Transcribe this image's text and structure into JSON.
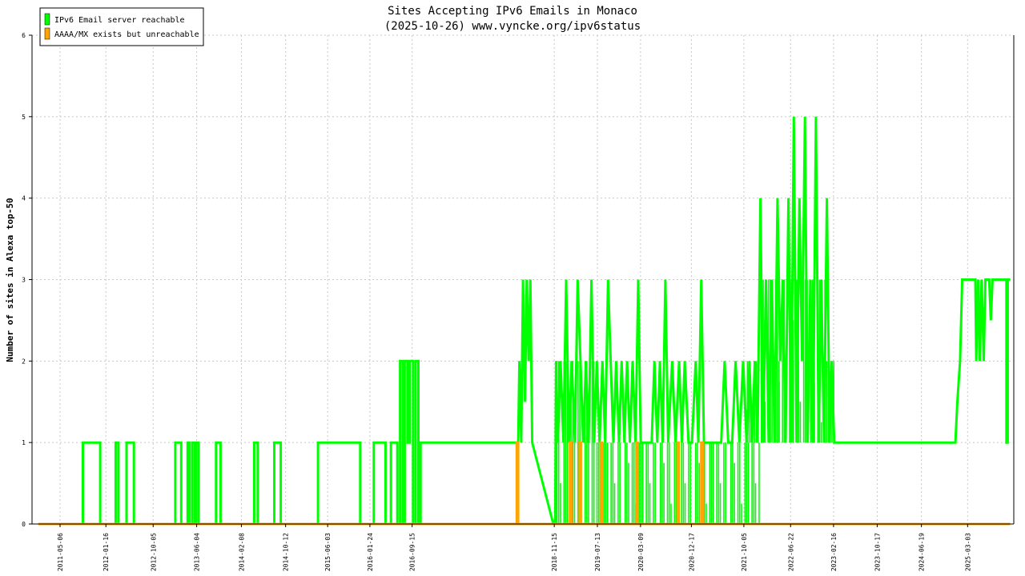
{
  "chart_data": {
    "type": "line",
    "title": "Sites Accepting IPv6 Emails in Monaco",
    "subtitle": "(2025-10-26) www.vyncke.org/ipv6status",
    "xlabel": "",
    "ylabel": "Number of sites in Alexa top-50",
    "ylim": [
      0,
      6
    ],
    "y_ticks": [
      0,
      1,
      2,
      3,
      4,
      5,
      6
    ],
    "x_ticks": [
      "2011-05-06",
      "2012-01-16",
      "2012-10-05",
      "2013-06-04",
      "2014-02-08",
      "2014-10-12",
      "2015-06-03",
      "2016-01-24",
      "2016-09-15",
      "2018-11-15",
      "2019-07-13",
      "2020-03-09",
      "2020-12-17",
      "2021-10-05",
      "2022-06-22",
      "2023-02-16",
      "2023-10-17",
      "2024-06-19",
      "2025-03-03"
    ],
    "xlim": [
      "2010-12-01",
      "2025-11-15"
    ],
    "grid": true,
    "legend_position": "top-left",
    "colors": {
      "reachable": "#00ff00",
      "unreachable": "#ffa500",
      "grid": "#c8c8c8"
    },
    "series": [
      {
        "name": "IPv6 Email server reachable",
        "color": "#00ff00",
        "points": [
          [
            "2011-01-05",
            0
          ],
          [
            "2011-09-10",
            0
          ],
          [
            "2011-09-10",
            1
          ],
          [
            "2011-12-15",
            1
          ],
          [
            "2011-12-15",
            0
          ],
          [
            "2012-03-10",
            0
          ],
          [
            "2012-03-10",
            1
          ],
          [
            "2012-03-25",
            1
          ],
          [
            "2012-03-25",
            0
          ],
          [
            "2012-05-10",
            0
          ],
          [
            "2012-05-10",
            1
          ],
          [
            "2012-06-20",
            1
          ],
          [
            "2012-06-20",
            0
          ],
          [
            "2013-02-05",
            0
          ],
          [
            "2013-02-05",
            1
          ],
          [
            "2013-03-10",
            1
          ],
          [
            "2013-03-10",
            0
          ],
          [
            "2013-04-15",
            0
          ],
          [
            "2013-04-15",
            1
          ],
          [
            "2013-04-25",
            1
          ],
          [
            "2013-04-25",
            0
          ],
          [
            "2013-05-10",
            0
          ],
          [
            "2013-05-10",
            1
          ],
          [
            "2013-05-25",
            1
          ],
          [
            "2013-05-25",
            0
          ],
          [
            "2013-06-01",
            0
          ],
          [
            "2013-06-01",
            1
          ],
          [
            "2013-06-15",
            1
          ],
          [
            "2013-06-15",
            0
          ],
          [
            "2013-09-20",
            0
          ],
          [
            "2013-09-20",
            1
          ],
          [
            "2013-10-15",
            1
          ],
          [
            "2013-10-15",
            0
          ],
          [
            "2014-04-20",
            0
          ],
          [
            "2014-04-20",
            1
          ],
          [
            "2014-05-10",
            1
          ],
          [
            "2014-05-10",
            0
          ],
          [
            "2014-08-10",
            0
          ],
          [
            "2014-08-10",
            1
          ],
          [
            "2014-09-15",
            1
          ],
          [
            "2014-09-15",
            0
          ],
          [
            "2015-04-10",
            0
          ],
          [
            "2015-04-10",
            1
          ],
          [
            "2015-12-01",
            1
          ],
          [
            "2015-12-01",
            0
          ],
          [
            "2016-02-15",
            0
          ],
          [
            "2016-02-15",
            1
          ],
          [
            "2016-04-20",
            1
          ],
          [
            "2016-04-20",
            0
          ],
          [
            "2016-05-20",
            0
          ],
          [
            "2016-05-20",
            1
          ],
          [
            "2016-06-25",
            1
          ],
          [
            "2016-06-25",
            0
          ],
          [
            "2016-07-10",
            0
          ],
          [
            "2016-07-10",
            2
          ],
          [
            "2016-07-25",
            2
          ],
          [
            "2016-07-25",
            0
          ],
          [
            "2016-08-05",
            0
          ],
          [
            "2016-08-05",
            2
          ],
          [
            "2016-08-20",
            2
          ],
          [
            "2016-08-20",
            1
          ],
          [
            "2016-09-01",
            1
          ],
          [
            "2016-09-01",
            2
          ],
          [
            "2016-09-20",
            2
          ],
          [
            "2016-09-20",
            0
          ],
          [
            "2016-10-05",
            0
          ],
          [
            "2016-10-05",
            2
          ],
          [
            "2016-10-20",
            2
          ],
          [
            "2016-10-20",
            0
          ],
          [
            "2016-11-01",
            0
          ],
          [
            "2016-11-01",
            1
          ],
          [
            "2018-04-20",
            1
          ],
          [
            "2018-04-25",
            0.5
          ],
          [
            "2018-05-05",
            2
          ],
          [
            "2018-05-15",
            1
          ],
          [
            "2018-05-25",
            3
          ],
          [
            "2018-06-05",
            1.5
          ],
          [
            "2018-06-15",
            3
          ],
          [
            "2018-06-25",
            2
          ],
          [
            "2018-07-05",
            3
          ],
          [
            "2018-07-15",
            1
          ],
          [
            "2018-11-10",
            0
          ],
          [
            "2018-11-20",
            0
          ],
          [
            "2018-11-25",
            2
          ],
          [
            "2018-12-05",
            1
          ],
          [
            "2018-12-20",
            2
          ],
          [
            "2019-01-05",
            1
          ],
          [
            "2019-01-20",
            3
          ],
          [
            "2019-02-05",
            1
          ],
          [
            "2019-02-20",
            2
          ],
          [
            "2019-03-10",
            1
          ],
          [
            "2019-03-25",
            3
          ],
          [
            "2019-04-10",
            2
          ],
          [
            "2019-04-25",
            1
          ],
          [
            "2019-05-10",
            2
          ],
          [
            "2019-05-25",
            1
          ],
          [
            "2019-06-10",
            3
          ],
          [
            "2019-06-25",
            1
          ],
          [
            "2019-07-10",
            2
          ],
          [
            "2019-07-25",
            1
          ],
          [
            "2019-08-10",
            2
          ],
          [
            "2019-08-25",
            1
          ],
          [
            "2019-09-10",
            3
          ],
          [
            "2019-09-25",
            2
          ],
          [
            "2019-10-10",
            1
          ],
          [
            "2019-10-25",
            2
          ],
          [
            "2019-11-10",
            1
          ],
          [
            "2019-11-25",
            2
          ],
          [
            "2019-12-10",
            1
          ],
          [
            "2019-12-25",
            2
          ],
          [
            "2020-01-10",
            1
          ],
          [
            "2020-01-25",
            2
          ],
          [
            "2020-02-10",
            1
          ],
          [
            "2020-02-25",
            3
          ],
          [
            "2020-03-10",
            1
          ],
          [
            "2020-04-01",
            1
          ],
          [
            "2020-04-20",
            1
          ],
          [
            "2020-05-10",
            1
          ],
          [
            "2020-05-25",
            2
          ],
          [
            "2020-06-10",
            1
          ],
          [
            "2020-06-25",
            2
          ],
          [
            "2020-07-10",
            1
          ],
          [
            "2020-07-25",
            3
          ],
          [
            "2020-08-10",
            1
          ],
          [
            "2020-09-01",
            2
          ],
          [
            "2020-09-20",
            1
          ],
          [
            "2020-10-10",
            2
          ],
          [
            "2020-10-25",
            1
          ],
          [
            "2020-11-10",
            2
          ],
          [
            "2020-12-01",
            1
          ],
          [
            "2020-12-20",
            1
          ],
          [
            "2021-01-10",
            2
          ],
          [
            "2021-01-25",
            1
          ],
          [
            "2021-02-10",
            3
          ],
          [
            "2021-02-25",
            1
          ],
          [
            "2021-03-15",
            1
          ],
          [
            "2021-04-01",
            1
          ],
          [
            "2021-04-20",
            1
          ],
          [
            "2021-05-10",
            1
          ],
          [
            "2021-06-01",
            1
          ],
          [
            "2021-06-20",
            2
          ],
          [
            "2021-07-10",
            1
          ],
          [
            "2021-08-01",
            1
          ],
          [
            "2021-08-20",
            2
          ],
          [
            "2021-09-10",
            1
          ],
          [
            "2021-10-01",
            2
          ],
          [
            "2021-10-20",
            1
          ],
          [
            "2021-11-05",
            2
          ],
          [
            "2021-11-20",
            1
          ],
          [
            "2021-12-05",
            2
          ],
          [
            "2021-12-20",
            1
          ],
          [
            "2022-01-05",
            4
          ],
          [
            "2022-01-20",
            1
          ],
          [
            "2022-02-05",
            3
          ],
          [
            "2022-02-20",
            1
          ],
          [
            "2022-03-10",
            3
          ],
          [
            "2022-03-25",
            1
          ],
          [
            "2022-04-10",
            4
          ],
          [
            "2022-04-25",
            2
          ],
          [
            "2022-05-10",
            3
          ],
          [
            "2022-05-25",
            1
          ],
          [
            "2022-06-10",
            4
          ],
          [
            "2022-06-25",
            1
          ],
          [
            "2022-07-10",
            5
          ],
          [
            "2022-07-25",
            1
          ],
          [
            "2022-08-10",
            4
          ],
          [
            "2022-08-25",
            2
          ],
          [
            "2022-09-10",
            5
          ],
          [
            "2022-09-25",
            1
          ],
          [
            "2022-10-10",
            3
          ],
          [
            "2022-10-25",
            1
          ],
          [
            "2022-11-10",
            5
          ],
          [
            "2022-11-25",
            1
          ],
          [
            "2022-12-10",
            3
          ],
          [
            "2022-12-25",
            1
          ],
          [
            "2023-01-10",
            4
          ],
          [
            "2023-01-25",
            1
          ],
          [
            "2023-02-05",
            2
          ],
          [
            "2023-02-20",
            1
          ],
          [
            "2024-12-25",
            1
          ],
          [
            "2025-01-05",
            1.5
          ],
          [
            "2025-01-20",
            2
          ],
          [
            "2025-02-01",
            3
          ],
          [
            "2025-04-15",
            3
          ],
          [
            "2025-04-20",
            2
          ],
          [
            "2025-05-01",
            3
          ],
          [
            "2025-05-10",
            2
          ],
          [
            "2025-05-20",
            3
          ],
          [
            "2025-06-01",
            2
          ],
          [
            "2025-06-10",
            3
          ],
          [
            "2025-07-01",
            3
          ],
          [
            "2025-07-10",
            2.5
          ],
          [
            "2025-07-20",
            3
          ],
          [
            "2025-10-05",
            3
          ],
          [
            "2025-10-05",
            1
          ],
          [
            "2025-10-12",
            1
          ],
          [
            "2025-10-12",
            3
          ],
          [
            "2025-10-26",
            3
          ]
        ],
        "dense_bands": [
          [
            "2018-11-20",
            "2019-06-30",
            0,
            2
          ],
          [
            "2019-07-01",
            "2021-12-31",
            0,
            1
          ],
          [
            "2021-10-15",
            "2023-02-20",
            1,
            2
          ],
          [
            "2022-01-01",
            "2022-12-31",
            1,
            3
          ]
        ]
      },
      {
        "name": "AAAA/MX exists but unreachable",
        "color": "#ffa500",
        "points": [
          [
            "2011-01-05",
            0
          ],
          [
            "2018-04-20",
            0
          ],
          [
            "2018-04-20",
            1
          ],
          [
            "2018-04-28",
            1
          ],
          [
            "2018-04-28",
            0
          ],
          [
            "2019-02-10",
            0
          ],
          [
            "2019-02-10",
            1
          ],
          [
            "2019-02-18",
            1
          ],
          [
            "2019-02-18",
            0
          ],
          [
            "2019-04-05",
            0
          ],
          [
            "2019-04-05",
            1
          ],
          [
            "2019-04-12",
            1
          ],
          [
            "2019-04-12",
            0
          ],
          [
            "2019-08-01",
            0
          ],
          [
            "2019-08-01",
            1
          ],
          [
            "2019-08-08",
            1
          ],
          [
            "2019-08-08",
            0
          ],
          [
            "2020-02-15",
            0
          ],
          [
            "2020-02-15",
            1
          ],
          [
            "2020-02-22",
            1
          ],
          [
            "2020-02-22",
            0
          ],
          [
            "2020-10-01",
            0
          ],
          [
            "2020-10-01",
            1
          ],
          [
            "2020-10-08",
            1
          ],
          [
            "2020-10-08",
            0
          ],
          [
            "2021-02-10",
            0
          ],
          [
            "2021-02-10",
            1
          ],
          [
            "2021-02-18",
            1
          ],
          [
            "2021-02-18",
            0
          ],
          [
            "2025-10-26",
            0
          ]
        ]
      }
    ]
  }
}
